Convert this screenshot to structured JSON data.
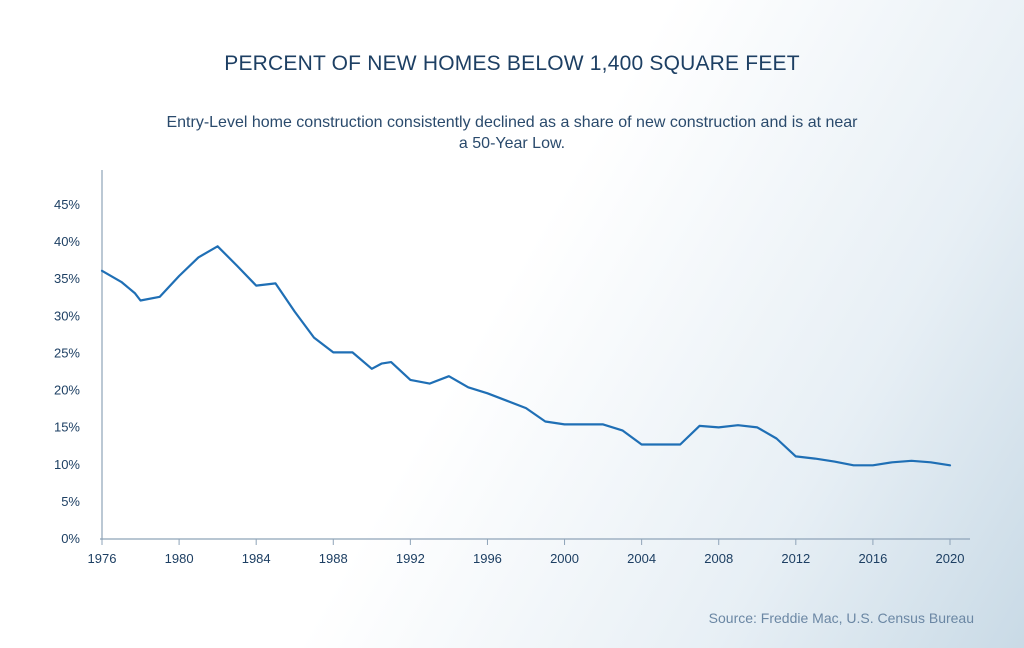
{
  "title": "PERCENT OF NEW HOMES BELOW 1,400 SQUARE FEET",
  "subtitle": "Entry-Level home construction consistently declined as a share of new construction and is at near a 50-Year Low.",
  "source": "Source: Freddie Mac, U.S. Census Bureau",
  "colors": {
    "line": "#1f6fb5",
    "axis": "#8ea3b8",
    "text": "#1d3f63"
  },
  "chart_data": {
    "type": "line",
    "title": "PERCENT OF NEW HOMES BELOW 1,400 SQUARE FEET",
    "subtitle": "Entry-Level home construction consistently declined as a share of new construction and is at near a 50-Year Low.",
    "xlabel": "",
    "ylabel": "",
    "xlim": [
      1976,
      2020
    ],
    "ylim": [
      0,
      50
    ],
    "grid": false,
    "legend": "none",
    "x_ticks": [
      1976,
      1980,
      1984,
      1988,
      1992,
      1996,
      2000,
      2004,
      2008,
      2012,
      2016,
      2020
    ],
    "y_ticks": [
      0,
      5,
      10,
      15,
      20,
      25,
      30,
      35,
      40,
      45
    ],
    "y_tick_labels": [
      "0%",
      "5%",
      "10%",
      "15%",
      "20%",
      "25%",
      "30%",
      "35%",
      "40%",
      "45%"
    ],
    "series": [
      {
        "x": [
          1976,
          1977,
          1977.7,
          1978,
          1979,
          1980,
          1981,
          1982,
          1983,
          1984,
          1985,
          1986,
          1987,
          1988,
          1989,
          1990,
          1990.5,
          1991,
          1992,
          1993,
          1994,
          1995,
          1996,
          1997,
          1998,
          1999,
          2000,
          2001,
          2002,
          2003,
          2004,
          2005,
          2006,
          2007,
          2008,
          2009,
          2010,
          2011,
          2012,
          2013,
          2014,
          2015,
          2016,
          2017,
          2018,
          2019,
          2020
        ],
        "y": [
          36,
          34.5,
          33,
          32,
          32.5,
          35.3,
          37.8,
          39.3,
          36.7,
          34,
          34.3,
          30.5,
          27,
          25,
          25,
          22.8,
          23.5,
          23.7,
          21.3,
          20.8,
          21.8,
          20.3,
          19.5,
          18.5,
          17.5,
          15.7,
          15.3,
          15.3,
          15.3,
          14.5,
          12.6,
          12.6,
          12.6,
          15.1,
          14.9,
          15.2,
          14.9,
          13.4,
          11,
          10.7,
          10.3,
          9.8,
          9.8,
          10.2,
          10.4,
          10.2,
          9.8
        ]
      }
    ]
  }
}
